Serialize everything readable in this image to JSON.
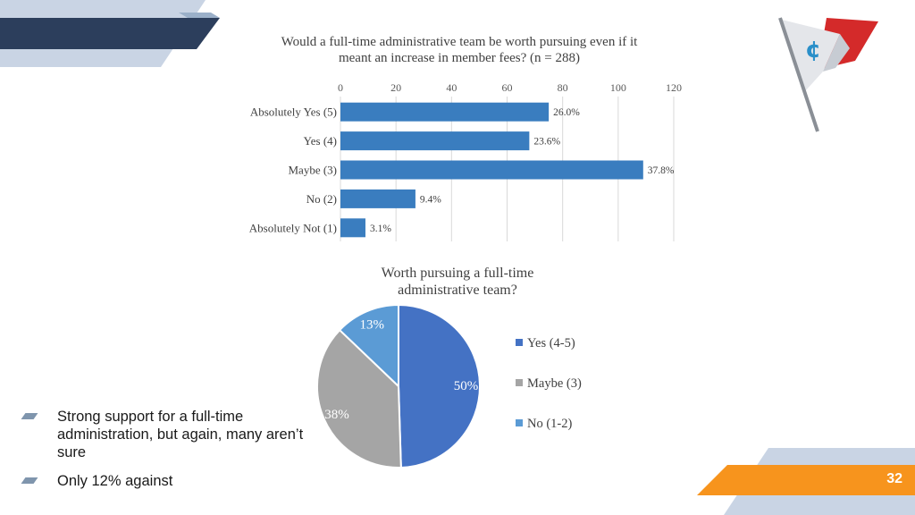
{
  "slide": {
    "page_number": "32"
  },
  "decoration": {
    "flag_icon": "cents-flag-icon",
    "accent": "#f7941d",
    "navy": "#2c3e5c"
  },
  "bullets": [
    {
      "text": "Strong support for a full-time administration, but again, many aren’t sure"
    },
    {
      "text": "Only 12% against"
    }
  ],
  "chart_data": [
    {
      "type": "bar",
      "orientation": "horizontal",
      "title": "Would a full-time administrative team be worth pursuing even if it meant an increase in member fees? (n = 288)",
      "categories": [
        "Absolutely Yes (5)",
        "Yes (4)",
        "Maybe (3)",
        "No (2)",
        "Absolutely Not (1)"
      ],
      "values": [
        75,
        68,
        109,
        27,
        9
      ],
      "data_labels": [
        "26.0%",
        "23.6%",
        "37.8%",
        "9.4%",
        "3.1%"
      ],
      "xlim": [
        0,
        120
      ],
      "xticks": [
        0,
        20,
        40,
        60,
        80,
        100,
        120
      ],
      "axis_position": "top",
      "grid": true,
      "color": "#3a7dbf"
    },
    {
      "type": "pie",
      "title": "Worth pursuing a full-time administrative team?",
      "categories": [
        "Yes (4-5)",
        "Maybe (3)",
        "No (1-2)"
      ],
      "values": [
        50,
        38,
        13
      ],
      "data_labels": [
        "50%",
        "38%",
        "13%"
      ],
      "colors": [
        "#4472c4",
        "#a5a5a5",
        "#5b9bd5"
      ],
      "legend_position": "right"
    }
  ]
}
